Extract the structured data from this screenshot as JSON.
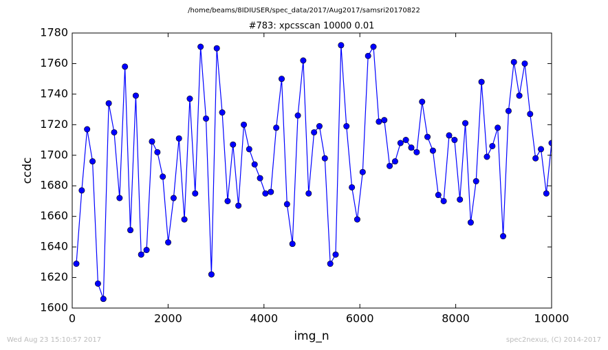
{
  "chart_data": {
    "type": "line",
    "path_label": "/home/beams/8IDIUSER/spec_data/2017/Aug2017/samsri20170822",
    "title": "#783: xpcsscan 10000 0.01",
    "x_label": "img_n",
    "y_label": "ccdc",
    "footer_left": "Wed Aug 23 15:10:57 2017",
    "footer_right": "spec2nexus, (C) 2014-2017",
    "xlim": [
      0,
      10000
    ],
    "xticks": [
      0,
      2000,
      4000,
      6000,
      8000,
      10000
    ],
    "ylim": [
      1600,
      1780
    ],
    "yticks": [
      1600,
      1620,
      1640,
      1660,
      1680,
      1700,
      1720,
      1740,
      1760,
      1780
    ],
    "series": [
      {
        "color": "#0000ff",
        "x": [
          86,
          199,
          311,
          424,
          537,
          650,
          762,
          875,
          988,
          1100,
          1213,
          1326,
          1438,
          1551,
          1664,
          1777,
          1889,
          2002,
          2115,
          2227,
          2340,
          2453,
          2565,
          2678,
          2791,
          2904,
          3016,
          3129,
          3242,
          3354,
          3467,
          3580,
          3692,
          3805,
          3918,
          4030,
          4143,
          4256,
          4369,
          4481,
          4594,
          4707,
          4819,
          4932,
          5045,
          5157,
          5270,
          5383,
          5495,
          5608,
          5721,
          5834,
          5946,
          6059,
          6172,
          6284,
          6397,
          6510,
          6622,
          6735,
          6848,
          6960,
          7073,
          7186,
          7299,
          7411,
          7524,
          7637,
          7749,
          7862,
          7975,
          8087,
          8200,
          8313,
          8425,
          8538,
          8651,
          8764,
          8876,
          8989,
          9102,
          9214,
          9327,
          9440,
          9552,
          9665,
          9778,
          9890,
          10000
        ],
        "values": [
          1629,
          1677,
          1717,
          1696,
          1616,
          1606,
          1734,
          1715,
          1672,
          1758,
          1651,
          1739,
          1635,
          1638,
          1709,
          1702,
          1686,
          1643,
          1672,
          1711,
          1658,
          1737,
          1675,
          1771,
          1724,
          1622,
          1770,
          1728,
          1670,
          1707,
          1667,
          1720,
          1704,
          1694,
          1685,
          1675,
          1676,
          1718,
          1750,
          1668,
          1642,
          1726,
          1762,
          1675,
          1715,
          1719,
          1698,
          1629,
          1635,
          1772,
          1719,
          1679,
          1658,
          1689,
          1765,
          1771,
          1722,
          1723,
          1693,
          1696,
          1708,
          1710,
          1705,
          1702,
          1735,
          1712,
          1703,
          1674,
          1670,
          1713,
          1710,
          1671,
          1721,
          1656,
          1683,
          1748,
          1699,
          1706,
          1718,
          1647,
          1729,
          1761,
          1739,
          1760,
          1727,
          1698,
          1704,
          1675,
          1708
        ]
      }
    ]
  }
}
